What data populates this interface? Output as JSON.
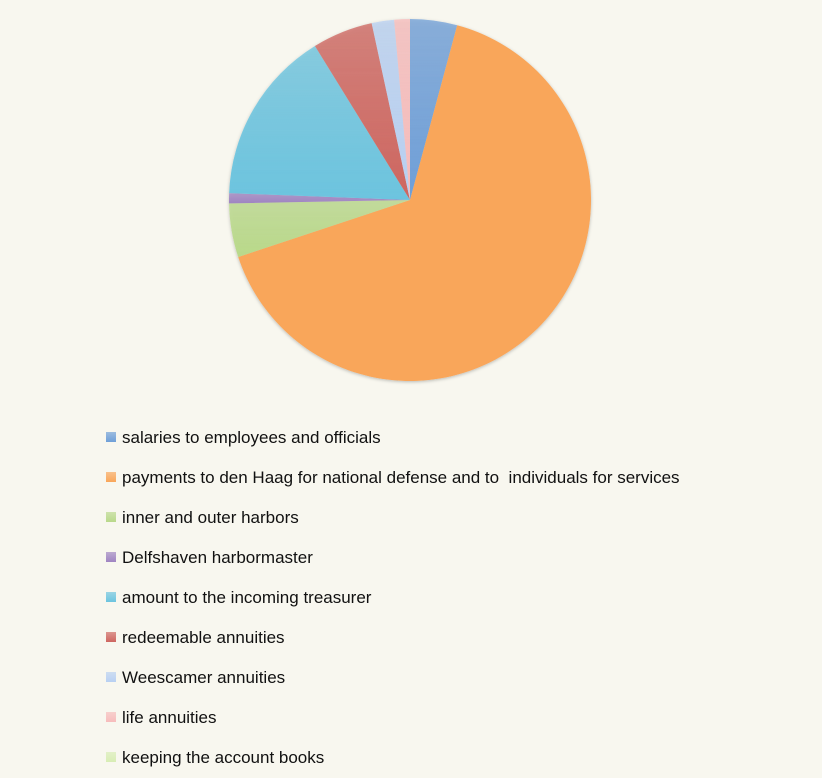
{
  "chart_data": {
    "type": "pie",
    "title": "",
    "start": "12 o'clock, clockwise",
    "legend_position": "bottom",
    "series": [
      {
        "name": "salaries to employees and officials",
        "value": 4.2,
        "color": "#6f9fd8"
      },
      {
        "name": "payments to den Haag for national defense and to  individuals for services",
        "value": 65.7,
        "color": "#f9a65a"
      },
      {
        "name": "inner and outer harbors",
        "value": 4.8,
        "color": "#b9d98a"
      },
      {
        "name": "Delfshaven harbormaster",
        "value": 0.9,
        "color": "#9f84c2"
      },
      {
        "name": "amount to the incoming treasurer",
        "value": 15.6,
        "color": "#6cc4df"
      },
      {
        "name": "redeemable annuities",
        "value": 5.4,
        "color": "#ce6660"
      },
      {
        "name": "Weescamer annuities",
        "value": 2.0,
        "color": "#b8d0f2"
      },
      {
        "name": "life annuities",
        "value": 1.4,
        "color": "#f7bcbc"
      },
      {
        "name": "keeping the account books",
        "value": 0,
        "color": "#d8edb4"
      }
    ]
  }
}
